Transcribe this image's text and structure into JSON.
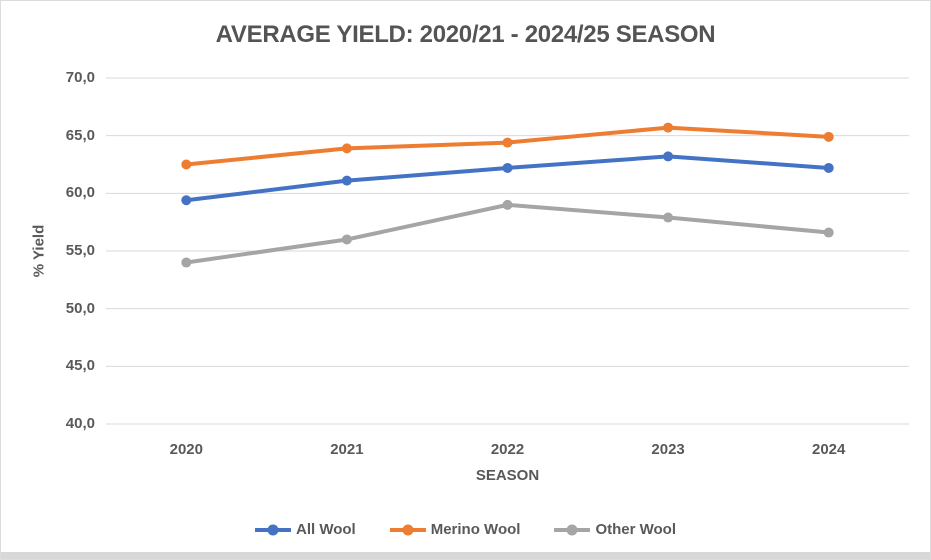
{
  "frame": {
    "background": "#ffffff",
    "border_color": "#dcdcdc",
    "bottom_strip_color": "#d8d8d8",
    "text_color": "#595959"
  },
  "chart_data": {
    "type": "line",
    "title": "AVERAGE YIELD: 2020/21 - 2024/25 SEASON",
    "xlabel": "SEASON",
    "ylabel": "% Yield",
    "categories": [
      "2020",
      "2021",
      "2022",
      "2023",
      "2024"
    ],
    "series": [
      {
        "name": "All Wool",
        "color": "#4472C4",
        "values": [
          59.4,
          61.1,
          62.2,
          63.2,
          62.2
        ]
      },
      {
        "name": "Merino Wool",
        "color": "#ED7D31",
        "values": [
          62.5,
          63.9,
          64.4,
          65.7,
          64.9
        ]
      },
      {
        "name": "Other Wool",
        "color": "#A5A5A5",
        "values": [
          54.0,
          56.0,
          59.0,
          57.9,
          56.6
        ]
      }
    ],
    "ylim": [
      40,
      70
    ],
    "ytick_step": 5,
    "ytick_labels": [
      "70,0",
      "65,0",
      "60,0",
      "55,0",
      "50,0",
      "45,0",
      "40,0"
    ],
    "decimal_separator": ",",
    "grid": true,
    "gridline_color": "#d9d9d9",
    "legend_position": "bottom"
  }
}
